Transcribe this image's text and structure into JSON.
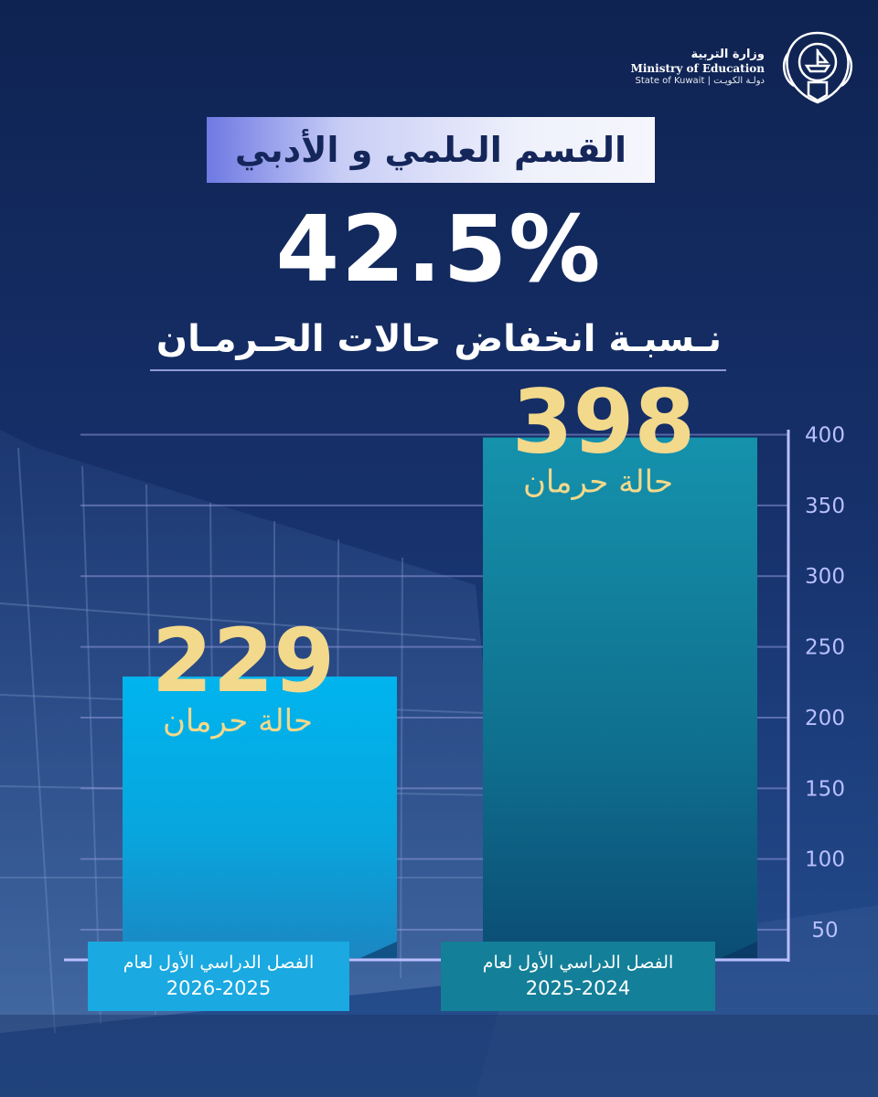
{
  "header": {
    "ministry_ar": "وزارة التربية",
    "ministry_en": "Ministry of Education",
    "state_en": "State of Kuwait",
    "state_ar": "دولـة الكويـت"
  },
  "title": "القسم العلمي و الأدبي",
  "headline": "42.5%",
  "subheadline": "نـسبـة انخفاض حالات الحـرمـان",
  "colors": {
    "bar_current": "#00aee8",
    "bar_previous": "#13879f",
    "value_text": "#f3d98b",
    "axis": "#b9bfff"
  },
  "chart_data": {
    "type": "bar",
    "categories": [
      {
        "line1": "الفصل الدراسي الأول لعام",
        "line2": "2026-2025"
      },
      {
        "line1": "الفصل الدراسي الأول لعام",
        "line2": "2025-2024"
      }
    ],
    "values": [
      229,
      398
    ],
    "value_unit_label": "حالة حرمان",
    "y_ticks": [
      50,
      100,
      150,
      200,
      250,
      300,
      350,
      400
    ],
    "ylim": [
      30,
      410
    ],
    "axis_position": "right",
    "grid": true
  }
}
